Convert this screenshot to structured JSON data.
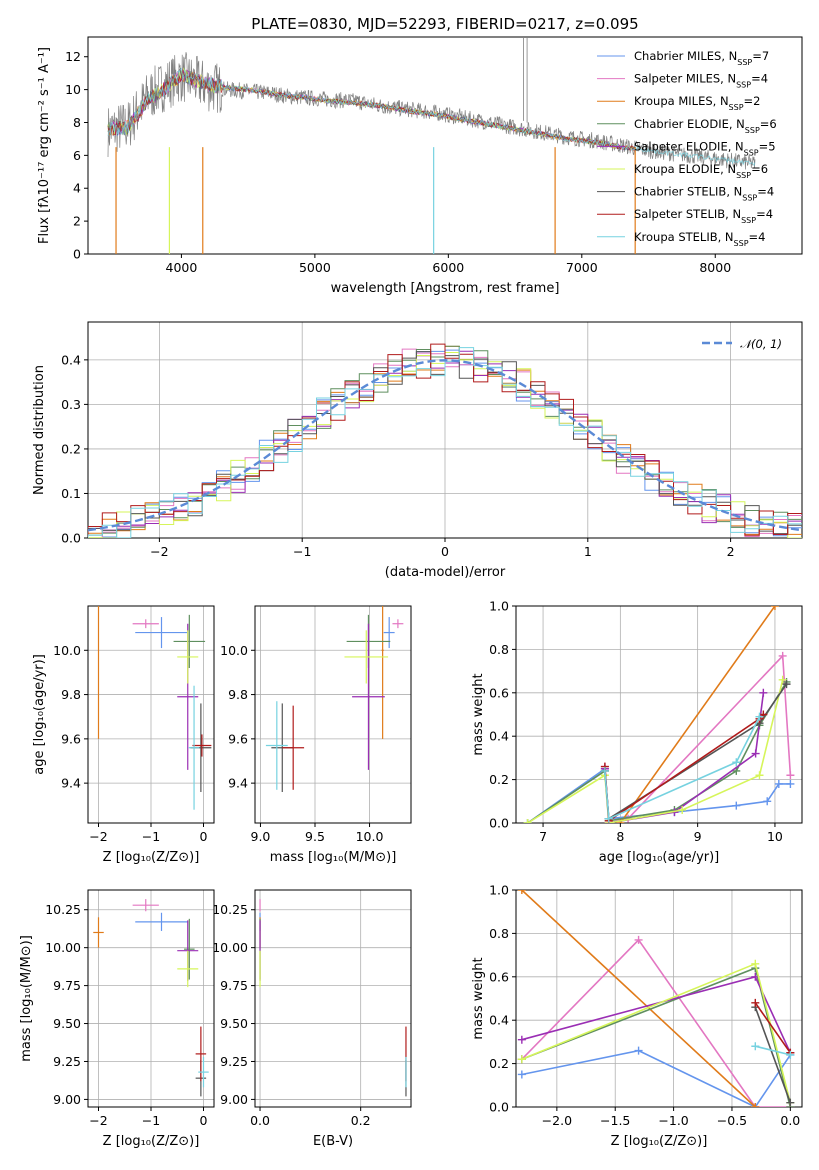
{
  "figure": {
    "title": "PLATE=0830, MJD=52293, FIBERID=0217, z=0.095"
  },
  "models": [
    {
      "name": "Chabrier MILES",
      "nssp": "7",
      "color": "#6495ed"
    },
    {
      "name": "Salpeter MILES",
      "nssp": "4",
      "color": "#e377c2"
    },
    {
      "name": "Kroupa MILES",
      "nssp": "2",
      "color": "#e07b1a"
    },
    {
      "name": "Chabrier ELODIE",
      "nssp": "6",
      "color": "#5f8f5f"
    },
    {
      "name": "Salpeter ELODIE",
      "nssp": "5",
      "color": "#9a2eb4"
    },
    {
      "name": "Kroupa ELODIE",
      "nssp": "6",
      "color": "#d6f55a"
    },
    {
      "name": "Chabrier STELIB",
      "nssp": "4",
      "color": "#555555"
    },
    {
      "name": "Salpeter STELIB",
      "nssp": "4",
      "color": "#b01b1b"
    },
    {
      "name": "Kroupa STELIB",
      "nssp": "4",
      "color": "#76d2e0"
    }
  ],
  "chart_data": [
    {
      "id": "spectrum",
      "type": "line",
      "xlabel": "wavelength [Angstrom, rest frame]",
      "ylabel": "Flux [fλ10⁻¹⁷ erg cm⁻² s⁻¹ A⁻¹]",
      "xlim": [
        3300,
        8650
      ],
      "ylim": [
        0,
        13.2
      ],
      "xticks": [
        4000,
        5000,
        6000,
        7000,
        8000
      ],
      "yticks": [
        0,
        2,
        4,
        6,
        8,
        10,
        12
      ],
      "grid": false,
      "legend_position": "top-right",
      "observed": {
        "color": "#808080",
        "x": [
          3450,
          3600,
          3750,
          3900,
          4000,
          4100,
          4200,
          4350,
          4500,
          4650,
          4800,
          4950,
          5100,
          5300,
          5500,
          5700,
          5900,
          6100,
          6300,
          6500,
          6700,
          6900,
          7100,
          7300,
          7500,
          7700,
          7900,
          8100,
          8300
        ],
        "y": [
          7.5,
          7.8,
          9.6,
          10.4,
          10.8,
          10.5,
          10.2,
          10.0,
          9.9,
          9.8,
          9.6,
          9.5,
          9.4,
          9.3,
          9.0,
          8.8,
          8.6,
          8.3,
          8.0,
          7.7,
          7.4,
          7.1,
          6.9,
          6.6,
          6.3,
          6.1,
          5.9,
          5.7,
          5.5
        ]
      },
      "model_curve": {
        "x": [
          3450,
          3600,
          3750,
          3900,
          4000,
          4100,
          4200,
          4350,
          4500,
          4650,
          4800,
          4950,
          5100,
          5300,
          5500,
          5700,
          5900,
          6100,
          6300,
          6500,
          6700,
          6900,
          7100,
          7300,
          7400
        ],
        "y": [
          7.6,
          7.7,
          9.4,
          10.2,
          10.9,
          10.6,
          10.3,
          10.1,
          10.0,
          9.8,
          9.6,
          9.5,
          9.3,
          9.2,
          9.0,
          8.7,
          8.5,
          8.2,
          7.9,
          7.6,
          7.3,
          7.0,
          6.8,
          6.5,
          6.4
        ]
      }
    },
    {
      "id": "residuals",
      "type": "bar",
      "xlabel": "(data-model)/error",
      "ylabel": "Normed distribution",
      "xlim": [
        -2.5,
        2.5
      ],
      "ylim": [
        0,
        0.485
      ],
      "xticks": [
        -2,
        -1,
        0,
        1,
        2
      ],
      "yticks": [
        0.0,
        0.1,
        0.2,
        0.3,
        0.4
      ],
      "grid": true,
      "legend_position": "top-right",
      "reference_label": "𝒩(0, 1)",
      "reference_color": "#5b8ad6",
      "bin_width": 0.1
    },
    {
      "id": "age-vs-Z",
      "type": "scatter",
      "xlabel": "Z [log₁₀(Z/Z⊙)]",
      "ylabel": "age  [log₁₀(age/yr)]",
      "xlim": [
        -2.2,
        0.2
      ],
      "ylim": [
        9.22,
        10.2
      ],
      "xticks": [
        -2,
        -1,
        0
      ],
      "yticks": [
        9.4,
        9.6,
        9.8,
        10.0
      ],
      "grid": true,
      "points": [
        {
          "model": 0,
          "x": -0.8,
          "y": 10.08,
          "xerr": 0.5,
          "yerr": 0.07
        },
        {
          "model": 1,
          "x": -1.1,
          "y": 10.12,
          "xerr": 0.25,
          "yerr": 0.02
        },
        {
          "model": 2,
          "x": -2.0,
          "y": 10.0,
          "xerr": 0.0,
          "yerr": 0.4
        },
        {
          "model": 3,
          "x": -0.27,
          "y": 10.04,
          "xerr": 0.3,
          "yerr": 0.12
        },
        {
          "model": 4,
          "x": -0.3,
          "y": 9.79,
          "xerr": 0.2,
          "yerr": 0.33
        },
        {
          "model": 5,
          "x": -0.3,
          "y": 9.97,
          "xerr": 0.2,
          "yerr": 0.12
        },
        {
          "model": 6,
          "x": -0.05,
          "y": 9.56,
          "xerr": 0.2,
          "yerr": 0.2
        },
        {
          "model": 7,
          "x": -0.03,
          "y": 9.57,
          "xerr": 0.18,
          "yerr": 0.05
        },
        {
          "model": 8,
          "x": -0.18,
          "y": 9.56,
          "xerr": 0.1,
          "yerr": 0.28
        }
      ]
    },
    {
      "id": "age-vs-mass",
      "type": "scatter",
      "xlabel": "mass [log₁₀(M/M⊙)]",
      "ylabel": "",
      "xlim": [
        8.95,
        10.38
      ],
      "ylim": [
        9.22,
        10.2
      ],
      "xticks": [
        9.0,
        9.5,
        10.0
      ],
      "yticks": [
        9.4,
        9.6,
        9.8,
        10.0
      ],
      "grid": true,
      "points": [
        {
          "model": 0,
          "x": 10.18,
          "y": 10.08,
          "xerr": 0.05,
          "yerr": 0.07
        },
        {
          "model": 1,
          "x": 10.26,
          "y": 10.12,
          "xerr": 0.05,
          "yerr": 0.02
        },
        {
          "model": 2,
          "x": 10.12,
          "y": 10.0,
          "xerr": 0.01,
          "yerr": 0.4
        },
        {
          "model": 3,
          "x": 9.99,
          "y": 10.04,
          "xerr": 0.2,
          "yerr": 0.12
        },
        {
          "model": 4,
          "x": 9.99,
          "y": 9.79,
          "xerr": 0.15,
          "yerr": 0.33
        },
        {
          "model": 5,
          "x": 9.97,
          "y": 9.97,
          "xerr": 0.2,
          "yerr": 0.12
        },
        {
          "model": 6,
          "x": 9.2,
          "y": 9.56,
          "xerr": 0.1,
          "yerr": 0.2
        },
        {
          "model": 7,
          "x": 9.3,
          "y": 9.56,
          "xerr": 0.1,
          "yerr": 0.19
        },
        {
          "model": 8,
          "x": 9.15,
          "y": 9.57,
          "xerr": 0.1,
          "yerr": 0.2
        }
      ]
    },
    {
      "id": "weight-vs-age",
      "type": "line",
      "xlabel": "age  [log₁₀(age/yr)]",
      "ylabel": "mass weight",
      "xlim": [
        6.65,
        10.35
      ],
      "ylim": [
        0.0,
        1.0
      ],
      "xticks": [
        7,
        8,
        9,
        10
      ],
      "yticks": [
        0.0,
        0.2,
        0.4,
        0.6,
        0.8,
        1.0
      ],
      "grid": true,
      "series": [
        {
          "model": 0,
          "x": [
            6.8,
            7.8,
            7.85,
            8.7,
            9.5,
            9.9,
            10.05,
            10.2
          ],
          "y": [
            0.0,
            0.25,
            0.02,
            0.05,
            0.08,
            0.1,
            0.18,
            0.18
          ]
        },
        {
          "model": 1,
          "x": [
            7.8,
            7.85,
            8.1,
            10.1,
            10.2
          ],
          "y": [
            0.26,
            0.0,
            0.02,
            0.77,
            0.22
          ]
        },
        {
          "model": 2,
          "x": [
            8.0,
            10.0
          ],
          "y": [
            0.0,
            1.0
          ]
        },
        {
          "model": 3,
          "x": [
            6.8,
            7.8,
            7.85,
            8.7,
            9.5,
            9.8,
            10.15
          ],
          "y": [
            0.0,
            0.24,
            0.01,
            0.06,
            0.24,
            0.45,
            0.65
          ]
        },
        {
          "model": 4,
          "x": [
            7.8,
            7.85,
            8.7,
            9.75,
            9.85
          ],
          "y": [
            0.25,
            0.0,
            0.05,
            0.32,
            0.6
          ]
        },
        {
          "model": 5,
          "x": [
            6.8,
            7.8,
            7.85,
            8.8,
            9.8,
            10.1
          ],
          "y": [
            0.0,
            0.22,
            0.0,
            0.06,
            0.22,
            0.66
          ]
        },
        {
          "model": 6,
          "x": [
            7.8,
            7.85,
            9.8,
            10.15
          ],
          "y": [
            0.24,
            0.02,
            0.46,
            0.64
          ]
        },
        {
          "model": 7,
          "x": [
            7.8,
            7.85,
            9.8,
            9.85
          ],
          "y": [
            0.26,
            0.01,
            0.48,
            0.5
          ]
        },
        {
          "model": 8,
          "x": [
            7.8,
            7.85,
            9.5,
            9.8
          ],
          "y": [
            0.24,
            0.02,
            0.28,
            0.49
          ]
        }
      ]
    },
    {
      "id": "mass-vs-Z",
      "type": "scatter",
      "xlabel": "Z [log₁₀(Z/Z⊙)]",
      "ylabel": "mass [log₁₀(M/M⊙)]",
      "xlim": [
        -2.2,
        0.2
      ],
      "ylim": [
        8.95,
        10.38
      ],
      "xticks": [
        -2,
        -1,
        0
      ],
      "yticks": [
        9.0,
        9.25,
        9.5,
        9.75,
        10.0,
        10.25
      ],
      "grid": true,
      "points": [
        {
          "model": 0,
          "x": -0.8,
          "y": 10.17,
          "xerr": 0.5,
          "yerr": 0.06
        },
        {
          "model": 1,
          "x": -1.1,
          "y": 10.28,
          "xerr": 0.25,
          "yerr": 0.04
        },
        {
          "model": 2,
          "x": -2.0,
          "y": 10.1,
          "xerr": 0.1,
          "yerr": 0.1
        },
        {
          "model": 3,
          "x": -0.27,
          "y": 9.99,
          "xerr": 0.1,
          "yerr": 0.2
        },
        {
          "model": 4,
          "x": -0.3,
          "y": 9.98,
          "xerr": 0.2,
          "yerr": 0.2
        },
        {
          "model": 5,
          "x": -0.3,
          "y": 9.86,
          "xerr": 0.2,
          "yerr": 0.12
        },
        {
          "model": 6,
          "x": -0.05,
          "y": 9.14,
          "xerr": 0.1,
          "yerr": 0.12
        },
        {
          "model": 7,
          "x": -0.05,
          "y": 9.3,
          "xerr": 0.1,
          "yerr": 0.18
        },
        {
          "model": 8,
          "x": 0.0,
          "y": 9.18,
          "xerr": 0.1,
          "yerr": 0.1
        }
      ]
    },
    {
      "id": "mass-vs-ebv",
      "type": "scatter",
      "xlabel": "E(B-V)",
      "ylabel": "",
      "xlim": [
        -0.01,
        0.3
      ],
      "ylim": [
        8.95,
        10.38
      ],
      "xticks": [
        0.0,
        0.2
      ],
      "yticks": [
        9.0,
        9.25,
        9.5,
        9.75,
        10.0,
        10.25
      ],
      "grid": true,
      "points": [
        {
          "model": 0,
          "x": 0.0,
          "y": 10.17,
          "xerr": 0.0,
          "yerr": 0.06
        },
        {
          "model": 1,
          "x": 0.0,
          "y": 10.28,
          "xerr": 0.0,
          "yerr": 0.04
        },
        {
          "model": 2,
          "x": 0.0,
          "y": 10.1,
          "xerr": 0.0,
          "yerr": 0.1
        },
        {
          "model": 3,
          "x": 0.0,
          "y": 9.99,
          "xerr": 0.0,
          "yerr": 0.2
        },
        {
          "model": 4,
          "x": 0.0,
          "y": 9.98,
          "xerr": 0.0,
          "yerr": 0.2
        },
        {
          "model": 5,
          "x": 0.0,
          "y": 9.86,
          "xerr": 0.0,
          "yerr": 0.12
        },
        {
          "model": 6,
          "x": 0.29,
          "y": 9.14,
          "xerr": 0.0,
          "yerr": 0.12
        },
        {
          "model": 7,
          "x": 0.29,
          "y": 9.3,
          "xerr": 0.0,
          "yerr": 0.18
        },
        {
          "model": 8,
          "x": 0.29,
          "y": 9.18,
          "xerr": 0.0,
          "yerr": 0.1
        }
      ]
    },
    {
      "id": "weight-vs-Z",
      "type": "line",
      "xlabel": "Z [log₁₀(Z/Z⊙)]",
      "ylabel": "mass weight",
      "xlim": [
        -2.35,
        0.1
      ],
      "ylim": [
        0.0,
        1.0
      ],
      "xticks": [
        -2.0,
        -1.5,
        -1.0,
        -0.5,
        0.0
      ],
      "yticks": [
        0.0,
        0.2,
        0.4,
        0.6,
        0.8,
        1.0
      ],
      "grid": true,
      "series": [
        {
          "model": 0,
          "x": [
            -2.3,
            -1.3,
            -0.3,
            0.0
          ],
          "y": [
            0.15,
            0.26,
            0.0,
            0.24
          ]
        },
        {
          "model": 1,
          "x": [
            -2.3,
            -1.3,
            -0.3,
            0.0
          ],
          "y": [
            0.22,
            0.77,
            0.0,
            0.0
          ]
        },
        {
          "model": 2,
          "x": [
            -2.3,
            -0.3
          ],
          "y": [
            1.0,
            0.0
          ]
        },
        {
          "model": 3,
          "x": [
            -2.3,
            -0.3,
            0.0
          ],
          "y": [
            0.22,
            0.64,
            0.0
          ]
        },
        {
          "model": 4,
          "x": [
            -2.3,
            -0.3,
            0.0
          ],
          "y": [
            0.31,
            0.6,
            0.25
          ]
        },
        {
          "model": 5,
          "x": [
            -2.3,
            -0.3,
            0.0
          ],
          "y": [
            0.22,
            0.66,
            0.02
          ]
        },
        {
          "model": 6,
          "x": [
            -0.3,
            0.0
          ],
          "y": [
            0.46,
            0.02
          ]
        },
        {
          "model": 7,
          "x": [
            -0.3,
            0.0
          ],
          "y": [
            0.48,
            0.25
          ]
        },
        {
          "model": 8,
          "x": [
            -0.3,
            0.0
          ],
          "y": [
            0.28,
            0.24
          ]
        }
      ]
    }
  ]
}
